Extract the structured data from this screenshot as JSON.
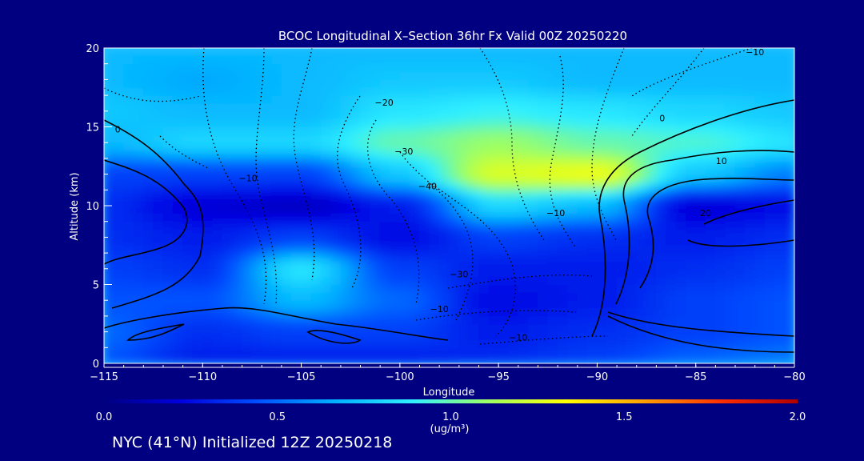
{
  "chart_data": {
    "type": "heatmap",
    "title": "BCOC Longitudinal X–Section 36hr  Fx Valid 00Z 20250220",
    "xlabel": "Longitude",
    "ylabel": "Altitude (km)",
    "xlim": [
      -115,
      -80
    ],
    "ylim": [
      0,
      20
    ],
    "x_ticks": [
      -115,
      -110,
      -105,
      -100,
      -95,
      -90,
      -85,
      -80
    ],
    "x_tick_labels": [
      "−115",
      "−110",
      "−105",
      "−100",
      "−95",
      "−90",
      "−85",
      "−80"
    ],
    "y_ticks": [
      0,
      5,
      10,
      15,
      20
    ],
    "y_tick_labels": [
      "0",
      "5",
      "10",
      "15",
      "20"
    ],
    "colorbar": {
      "range": [
        0.0,
        2.0
      ],
      "ticks": [
        0.0,
        0.5,
        1.0,
        1.5,
        2.0
      ],
      "tick_labels": [
        "0.0",
        "0.5",
        "1.0",
        "1.5",
        "2.0"
      ],
      "label": "(ug/m³)",
      "colormap": [
        "#000080",
        "#0000e0",
        "#0050ff",
        "#00b0ff",
        "#30f0ff",
        "#a0ff60",
        "#ffff00",
        "#ffa000",
        "#ff3000",
        "#b00000"
      ]
    },
    "field": {
      "longitudes": [
        -115,
        -110,
        -105,
        -100,
        -95,
        -90,
        -85,
        -80
      ],
      "altitudes": [
        0,
        2,
        4,
        6,
        8,
        10,
        12,
        14,
        16,
        18,
        20
      ],
      "values": [
        [
          0.45,
          0.3,
          0.3,
          0.3,
          0.35,
          0.4,
          0.5,
          0.55
        ],
        [
          0.5,
          0.35,
          0.4,
          0.4,
          0.3,
          0.35,
          0.4,
          0.45
        ],
        [
          0.45,
          0.45,
          0.7,
          0.5,
          0.25,
          0.3,
          0.4,
          0.45
        ],
        [
          0.4,
          0.35,
          0.85,
          0.4,
          0.3,
          0.3,
          0.35,
          0.4
        ],
        [
          0.35,
          0.3,
          0.4,
          0.25,
          0.4,
          0.35,
          0.3,
          0.35
        ],
        [
          0.35,
          0.2,
          0.15,
          0.3,
          0.8,
          0.7,
          0.2,
          0.25
        ],
        [
          0.4,
          0.4,
          0.4,
          0.75,
          1.25,
          1.3,
          0.75,
          0.55
        ],
        [
          0.7,
          0.8,
          0.8,
          1.0,
          1.1,
          1.0,
          0.95,
          0.85
        ],
        [
          0.75,
          0.7,
          0.7,
          0.85,
          0.9,
          0.85,
          0.8,
          0.75
        ],
        [
          0.7,
          0.65,
          0.7,
          0.75,
          0.75,
          0.7,
          0.7,
          0.7
        ],
        [
          0.7,
          0.7,
          0.7,
          0.7,
          0.7,
          0.7,
          0.7,
          0.7
        ]
      ]
    },
    "contour_labels": [
      {
        "text": "−10",
        "lon": -82,
        "alt": 19.7
      },
      {
        "text": "−20",
        "lon": -100.8,
        "alt": 16.5
      },
      {
        "text": "0",
        "lon": -114.3,
        "alt": 14.8
      },
      {
        "text": "0",
        "lon": -86.7,
        "alt": 15.5
      },
      {
        "text": "−30",
        "lon": -99.8,
        "alt": 13.4
      },
      {
        "text": "10",
        "lon": -83.7,
        "alt": 12.8
      },
      {
        "text": "−10",
        "lon": -107.7,
        "alt": 11.7
      },
      {
        "text": "−40",
        "lon": -98.6,
        "alt": 11.2
      },
      {
        "text": "−10",
        "lon": -92.1,
        "alt": 9.5
      },
      {
        "text": "20",
        "lon": -84.5,
        "alt": 9.5
      },
      {
        "text": "−30",
        "lon": -97.0,
        "alt": 5.6
      },
      {
        "text": "−10",
        "lon": -98.0,
        "alt": 3.4
      },
      {
        "text": "−10",
        "lon": -94.0,
        "alt": 1.6
      }
    ]
  },
  "footer_text": "NYC (41°N) Initialized 12Z 20250218"
}
